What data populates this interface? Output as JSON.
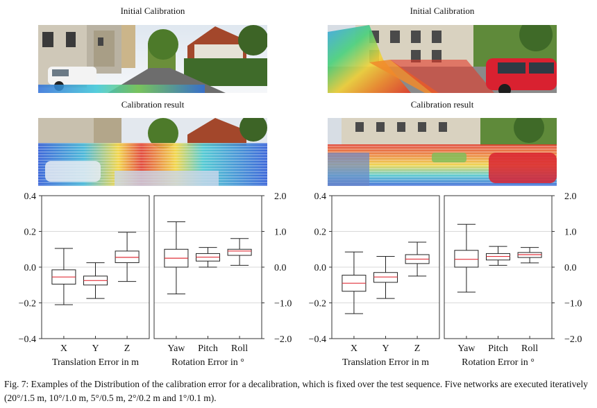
{
  "panels": [
    {
      "initial_title": "Initial Calibration",
      "result_title": "Calibration result"
    },
    {
      "initial_title": "Initial Calibration",
      "result_title": "Calibration result"
    }
  ],
  "caption": {
    "text": "Fig. 7: Examples of the Distribution of the calibration error for a decalibration, which is fixed over the test sequence. Five networks are executed iteratively (20°/1.5 m, 10°/1.0 m, 5°/0.5 m, 2°/0.2 m and 1°/0.1 m)."
  },
  "colors": {
    "median": "#e0303a",
    "box": "#222222",
    "grid": "#d9d9d9"
  },
  "chart_data": [
    {
      "type": "box",
      "left_axis": {
        "ticks": [
          "0.4",
          "0.2",
          "0.0",
          "−0.2",
          "−0.4"
        ],
        "ylim": [
          -0.4,
          0.4
        ]
      },
      "right_axis": {
        "ticks": [
          "2.0",
          "1.0",
          "0.0",
          "−1.0",
          "−2.0"
        ],
        "ylim": [
          -2.0,
          2.0
        ]
      },
      "translation": {
        "xlabel": "Translation Error in m",
        "categories": [
          "X",
          "Y",
          "Z"
        ],
        "boxes": [
          {
            "min": -0.21,
            "q1": -0.095,
            "median": -0.055,
            "q3": -0.015,
            "max": 0.105
          },
          {
            "min": -0.175,
            "q1": -0.1,
            "median": -0.075,
            "q3": -0.05,
            "max": 0.025
          },
          {
            "min": -0.08,
            "q1": 0.025,
            "median": 0.055,
            "q3": 0.09,
            "max": 0.195
          }
        ]
      },
      "rotation": {
        "xlabel": "Rotation Error in °",
        "categories": [
          "Yaw",
          "Pitch",
          "Roll"
        ],
        "boxes": [
          {
            "min": -0.75,
            "q1": 0.0,
            "median": 0.25,
            "q3": 0.5,
            "max": 1.27
          },
          {
            "min": 0.0,
            "q1": 0.17,
            "median": 0.28,
            "q3": 0.38,
            "max": 0.55
          },
          {
            "min": 0.05,
            "q1": 0.33,
            "median": 0.45,
            "q3": 0.5,
            "max": 0.8
          }
        ]
      }
    },
    {
      "type": "box",
      "left_axis": {
        "ticks": [
          "0.4",
          "0.2",
          "0.0",
          "−0.2",
          "−0.4"
        ],
        "ylim": [
          -0.4,
          0.4
        ]
      },
      "right_axis": {
        "ticks": [
          "2.0",
          "1.0",
          "0.0",
          "−1.0",
          "−2.0"
        ],
        "ylim": [
          -2.0,
          2.0
        ]
      },
      "translation": {
        "xlabel": "Translation Error in m",
        "categories": [
          "X",
          "Y",
          "Z"
        ],
        "boxes": [
          {
            "min": -0.26,
            "q1": -0.135,
            "median": -0.09,
            "q3": -0.045,
            "max": 0.085
          },
          {
            "min": -0.175,
            "q1": -0.085,
            "median": -0.055,
            "q3": -0.03,
            "max": 0.06
          },
          {
            "min": -0.05,
            "q1": 0.02,
            "median": 0.045,
            "q3": 0.07,
            "max": 0.14
          }
        ]
      },
      "rotation": {
        "xlabel": "Rotation Error in °",
        "categories": [
          "Yaw",
          "Pitch",
          "Roll"
        ],
        "boxes": [
          {
            "min": -0.7,
            "q1": 0.0,
            "median": 0.22,
            "q3": 0.47,
            "max": 1.2
          },
          {
            "min": 0.05,
            "q1": 0.2,
            "median": 0.3,
            "q3": 0.38,
            "max": 0.58
          },
          {
            "min": 0.12,
            "q1": 0.27,
            "median": 0.35,
            "q3": 0.41,
            "max": 0.55
          }
        ]
      }
    }
  ]
}
